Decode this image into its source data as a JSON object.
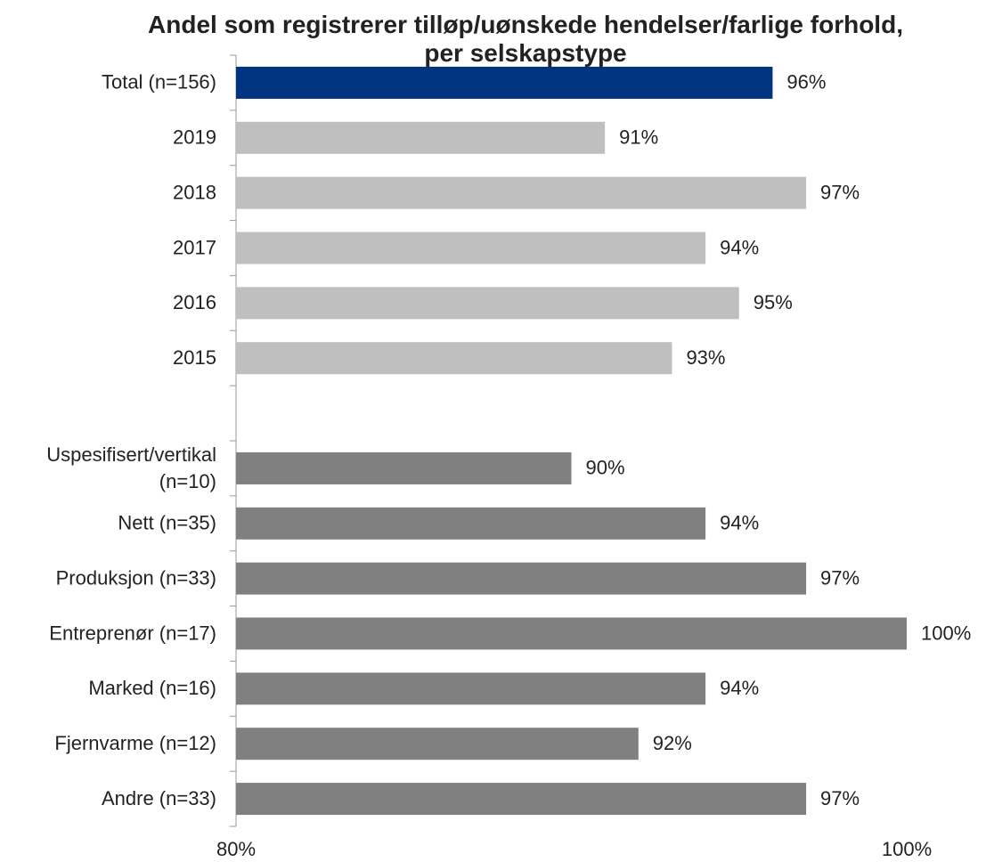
{
  "chart_data": {
    "type": "hbar",
    "title": "Andel som registrerer tilløp/uønskede hendelser/farlige forhold, per selskapstype",
    "categories": [
      "Total (n=156)",
      "2019",
      "2018",
      "2017",
      "2016",
      "2015",
      null,
      "Uspesifisert/vertikal (n=10)",
      "Nett (n=35)",
      "Produksjon (n=33)",
      "Entreprenør (n=17)",
      "Marked (n=16)",
      "Fjernvarme (n=12)",
      "Andre (n=33)"
    ],
    "values": [
      96,
      91,
      97,
      94,
      95,
      93,
      null,
      90,
      94,
      97,
      100,
      94,
      92,
      97
    ],
    "value_labels": [
      "96%",
      "91%",
      "97%",
      "94%",
      "95%",
      "93%",
      null,
      "90%",
      "94%",
      "97%",
      "100%",
      "94%",
      "92%",
      "97%"
    ],
    "colors": [
      "#003380",
      "#bfbfbf",
      "#bfbfbf",
      "#bfbfbf",
      "#bfbfbf",
      "#bfbfbf",
      null,
      "#808080",
      "#808080",
      "#808080",
      "#808080",
      "#808080",
      "#808080",
      "#808080"
    ],
    "xlim": [
      80,
      100
    ],
    "xticks": [
      {
        "value": 80,
        "label": "80%"
      },
      {
        "value": 100,
        "label": "100%"
      }
    ]
  }
}
